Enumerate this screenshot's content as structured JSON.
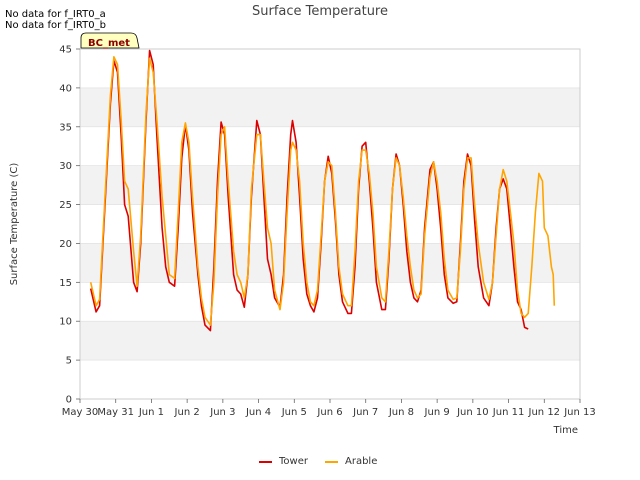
{
  "notes": [
    "No data for f_IRT0_a",
    "No data for f_IRT0_b"
  ],
  "badge": "BC_met",
  "colors": {
    "tower": "#dd0000",
    "arable": "#ffa500",
    "band": "#f2f2f2",
    "grid": "#dddddd"
  },
  "chart_data": {
    "type": "line",
    "title": "Surface Temperature",
    "xlabel": "Time",
    "ylabel": "Surface Temperature (C)",
    "ylim": [
      0,
      45
    ],
    "xlim": [
      0,
      14
    ],
    "yticks": [
      0,
      5,
      10,
      15,
      20,
      25,
      30,
      35,
      40,
      45
    ],
    "xticks": [
      {
        "v": 0,
        "label": "May 30"
      },
      {
        "v": 1,
        "label": "May 31"
      },
      {
        "v": 2,
        "label": "Jun 1"
      },
      {
        "v": 3,
        "label": "Jun 2"
      },
      {
        "v": 4,
        "label": "Jun 3"
      },
      {
        "v": 5,
        "label": "Jun 4"
      },
      {
        "v": 6,
        "label": "Jun 5"
      },
      {
        "v": 7,
        "label": "Jun 6"
      },
      {
        "v": 8,
        "label": "Jun 7"
      },
      {
        "v": 9,
        "label": "Jun 8"
      },
      {
        "v": 10,
        "label": "Jun 9"
      },
      {
        "v": 11,
        "label": "Jun 10"
      },
      {
        "v": 12,
        "label": "Jun 11"
      },
      {
        "v": 13,
        "label": "Jun 12"
      },
      {
        "v": 14,
        "label": "Jun 13"
      }
    ],
    "grid": true,
    "legend_position": "bottom-center",
    "series": [
      {
        "name": "Tower",
        "points": [
          [
            0.3,
            14.2
          ],
          [
            0.45,
            11.2
          ],
          [
            0.55,
            12
          ],
          [
            0.7,
            25
          ],
          [
            0.85,
            38
          ],
          [
            0.95,
            43.5
          ],
          [
            1.05,
            42
          ],
          [
            1.15,
            34
          ],
          [
            1.25,
            25
          ],
          [
            1.35,
            23.5
          ],
          [
            1.5,
            15
          ],
          [
            1.6,
            13.8
          ],
          [
            1.7,
            20
          ],
          [
            1.85,
            36
          ],
          [
            1.95,
            44.8
          ],
          [
            2.05,
            43
          ],
          [
            2.15,
            34
          ],
          [
            2.3,
            22
          ],
          [
            2.4,
            17
          ],
          [
            2.5,
            15
          ],
          [
            2.65,
            14.5
          ],
          [
            2.75,
            22
          ],
          [
            2.85,
            31
          ],
          [
            2.95,
            35.3
          ],
          [
            3.05,
            32
          ],
          [
            3.15,
            24
          ],
          [
            3.3,
            16
          ],
          [
            3.4,
            12
          ],
          [
            3.5,
            9.5
          ],
          [
            3.65,
            8.8
          ],
          [
            3.75,
            17
          ],
          [
            3.85,
            28
          ],
          [
            3.95,
            35.6
          ],
          [
            4.05,
            34
          ],
          [
            4.15,
            26
          ],
          [
            4.3,
            16
          ],
          [
            4.4,
            14
          ],
          [
            4.5,
            13.5
          ],
          [
            4.6,
            11.8
          ],
          [
            4.7,
            16
          ],
          [
            4.8,
            26
          ],
          [
            4.95,
            35.8
          ],
          [
            5.05,
            34
          ],
          [
            5.15,
            26
          ],
          [
            5.25,
            18
          ],
          [
            5.35,
            16
          ],
          [
            5.45,
            13
          ],
          [
            5.6,
            11.8
          ],
          [
            5.7,
            16
          ],
          [
            5.8,
            26
          ],
          [
            5.9,
            34
          ],
          [
            5.95,
            35.8
          ],
          [
            6.05,
            33
          ],
          [
            6.15,
            26
          ],
          [
            6.25,
            18
          ],
          [
            6.35,
            13.5
          ],
          [
            6.45,
            12
          ],
          [
            6.55,
            11.2
          ],
          [
            6.65,
            13
          ],
          [
            6.75,
            20
          ],
          [
            6.85,
            28
          ],
          [
            6.95,
            31.2
          ],
          [
            7.05,
            29
          ],
          [
            7.15,
            23
          ],
          [
            7.25,
            16
          ],
          [
            7.35,
            12.5
          ],
          [
            7.5,
            11
          ],
          [
            7.6,
            11
          ],
          [
            7.7,
            17
          ],
          [
            7.8,
            27
          ],
          [
            7.9,
            32.5
          ],
          [
            8.0,
            33
          ],
          [
            8.1,
            28
          ],
          [
            8.2,
            22
          ],
          [
            8.3,
            15
          ],
          [
            8.45,
            11.5
          ],
          [
            8.55,
            11.5
          ],
          [
            8.65,
            18
          ],
          [
            8.75,
            27
          ],
          [
            8.85,
            31.5
          ],
          [
            8.95,
            30
          ],
          [
            9.05,
            25
          ],
          [
            9.15,
            19
          ],
          [
            9.25,
            15
          ],
          [
            9.35,
            13
          ],
          [
            9.45,
            12.5
          ],
          [
            9.55,
            14
          ],
          [
            9.65,
            22
          ],
          [
            9.8,
            29.5
          ],
          [
            9.9,
            30.5
          ],
          [
            10.0,
            27
          ],
          [
            10.1,
            22
          ],
          [
            10.2,
            16
          ],
          [
            10.3,
            13
          ],
          [
            10.45,
            12.3
          ],
          [
            10.55,
            12.5
          ],
          [
            10.65,
            20
          ],
          [
            10.75,
            28
          ],
          [
            10.85,
            31.5
          ],
          [
            10.95,
            30
          ],
          [
            11.05,
            23
          ],
          [
            11.15,
            17
          ],
          [
            11.3,
            13
          ],
          [
            11.45,
            12
          ],
          [
            11.55,
            15
          ],
          [
            11.65,
            22
          ],
          [
            11.75,
            27
          ],
          [
            11.85,
            28.3
          ],
          [
            11.95,
            27
          ],
          [
            12.05,
            22
          ],
          [
            12.15,
            17
          ],
          [
            12.25,
            12.5
          ],
          [
            12.35,
            11.5
          ],
          [
            12.45,
            9.2
          ],
          [
            12.55,
            9
          ]
        ]
      },
      {
        "name": "Arable",
        "points": [
          [
            0.3,
            15
          ],
          [
            0.45,
            12
          ],
          [
            0.55,
            12.8
          ],
          [
            0.7,
            26
          ],
          [
            0.85,
            39
          ],
          [
            0.95,
            44
          ],
          [
            1.05,
            43
          ],
          [
            1.15,
            36
          ],
          [
            1.25,
            28
          ],
          [
            1.35,
            27
          ],
          [
            1.5,
            19
          ],
          [
            1.6,
            14.5
          ],
          [
            1.7,
            21
          ],
          [
            1.85,
            37
          ],
          [
            1.95,
            43.8
          ],
          [
            2.05,
            42
          ],
          [
            2.15,
            36
          ],
          [
            2.3,
            26
          ],
          [
            2.4,
            21
          ],
          [
            2.5,
            16
          ],
          [
            2.65,
            15.5
          ],
          [
            2.75,
            24
          ],
          [
            2.85,
            33
          ],
          [
            2.95,
            35.5
          ],
          [
            3.05,
            33
          ],
          [
            3.15,
            26
          ],
          [
            3.3,
            17
          ],
          [
            3.4,
            13
          ],
          [
            3.5,
            10.5
          ],
          [
            3.65,
            9.5
          ],
          [
            3.75,
            15
          ],
          [
            3.85,
            26
          ],
          [
            3.95,
            34
          ],
          [
            4.05,
            35
          ],
          [
            4.15,
            28
          ],
          [
            4.3,
            19
          ],
          [
            4.4,
            16
          ],
          [
            4.5,
            15
          ],
          [
            4.6,
            13
          ],
          [
            4.7,
            16
          ],
          [
            4.8,
            27
          ],
          [
            4.95,
            34
          ],
          [
            5.05,
            34
          ],
          [
            5.15,
            28
          ],
          [
            5.25,
            22
          ],
          [
            5.35,
            20
          ],
          [
            5.45,
            14
          ],
          [
            5.6,
            11.5
          ],
          [
            5.7,
            15
          ],
          [
            5.8,
            24
          ],
          [
            5.9,
            32
          ],
          [
            5.95,
            33
          ],
          [
            6.05,
            32
          ],
          [
            6.15,
            28
          ],
          [
            6.25,
            20
          ],
          [
            6.35,
            15
          ],
          [
            6.45,
            12.5
          ],
          [
            6.55,
            12
          ],
          [
            6.65,
            14
          ],
          [
            6.75,
            21
          ],
          [
            6.85,
            28
          ],
          [
            6.95,
            30.5
          ],
          [
            7.05,
            30
          ],
          [
            7.15,
            24
          ],
          [
            7.25,
            17
          ],
          [
            7.35,
            13.5
          ],
          [
            7.5,
            12
          ],
          [
            7.6,
            12
          ],
          [
            7.7,
            19
          ],
          [
            7.8,
            28
          ],
          [
            7.9,
            32
          ],
          [
            8.0,
            32
          ],
          [
            8.1,
            29
          ],
          [
            8.2,
            24
          ],
          [
            8.3,
            17
          ],
          [
            8.45,
            13
          ],
          [
            8.55,
            12.5
          ],
          [
            8.65,
            19
          ],
          [
            8.75,
            27
          ],
          [
            8.85,
            31
          ],
          [
            8.95,
            30
          ],
          [
            9.05,
            26
          ],
          [
            9.15,
            21
          ],
          [
            9.25,
            17
          ],
          [
            9.35,
            14
          ],
          [
            9.45,
            13
          ],
          [
            9.55,
            13.5
          ],
          [
            9.65,
            21
          ],
          [
            9.8,
            28.5
          ],
          [
            9.9,
            30.5
          ],
          [
            10.0,
            28
          ],
          [
            10.1,
            24
          ],
          [
            10.2,
            18
          ],
          [
            10.3,
            14
          ],
          [
            10.45,
            12.8
          ],
          [
            10.55,
            13
          ],
          [
            10.65,
            19
          ],
          [
            10.75,
            27
          ],
          [
            10.85,
            31
          ],
          [
            10.95,
            31
          ],
          [
            11.05,
            25
          ],
          [
            11.15,
            20
          ],
          [
            11.3,
            15
          ],
          [
            11.45,
            12.8
          ],
          [
            11.55,
            15
          ],
          [
            11.65,
            21
          ],
          [
            11.75,
            27
          ],
          [
            11.85,
            29.5
          ],
          [
            11.95,
            28
          ],
          [
            12.05,
            24
          ],
          [
            12.15,
            20
          ],
          [
            12.25,
            14
          ],
          [
            12.35,
            11
          ],
          [
            12.45,
            10.5
          ],
          [
            12.55,
            11
          ],
          [
            12.65,
            17
          ],
          [
            12.75,
            24
          ],
          [
            12.85,
            29
          ],
          [
            12.95,
            28
          ],
          [
            13.0,
            22
          ],
          [
            13.1,
            21
          ],
          [
            13.2,
            17
          ],
          [
            13.25,
            16
          ],
          [
            13.28,
            12
          ]
        ]
      }
    ]
  }
}
